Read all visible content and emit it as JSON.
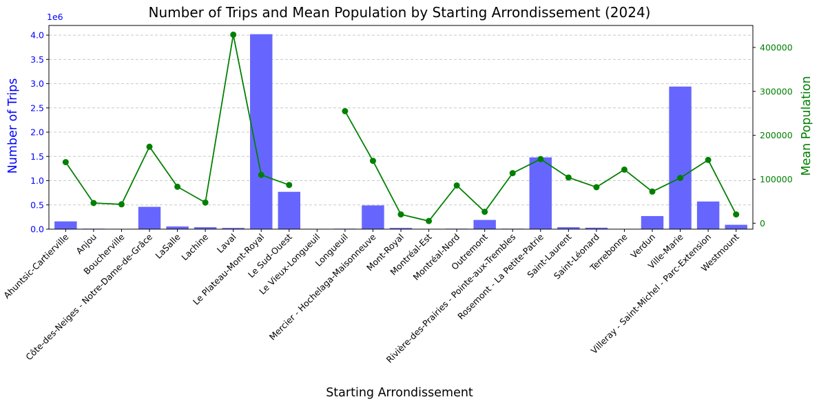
{
  "chart_data": {
    "type": "bar",
    "title": "Number of Trips and Mean Population by Starting Arrondissement (2024)",
    "xlabel": "Starting Arrondissement",
    "ylabel": "Number of Trips",
    "y2label": "Mean Population",
    "y_offset_label": "1e6",
    "categories": [
      "Ahuntsic-Cartierville",
      "Anjou",
      "Boucherville",
      "Côte-des-Neiges - Notre-Dame-de-Grâce",
      "LaSalle",
      "Lachine",
      "Laval",
      "Le Plateau-Mont-Royal",
      "Le Sud-Ouest",
      "Le Vieux-Longueuil",
      "Longueuil",
      "Mercier - Hochelaga-Maisonneuve",
      "Mont-Royal",
      "Montréal-Est",
      "Montréal-Nord",
      "Outremont",
      "Rivière-des-Prairies - Pointe-aux-Trembles",
      "Rosemont - La Petite-Patrie",
      "Saint-Laurent",
      "Saint-Léonard",
      "Terrebonne",
      "Verdun",
      "Ville-Marie",
      "Villeray - Saint-Michel - Parc-Extension",
      "Westmount"
    ],
    "series": [
      {
        "name": "Number of Trips",
        "type": "bar",
        "axis": "left",
        "values": [
          0.16,
          0.01,
          0.0,
          0.46,
          0.055,
          0.04,
          0.025,
          4.02,
          0.77,
          0.0,
          0.01,
          0.49,
          0.025,
          0.0,
          0.01,
          0.19,
          0.01,
          1.48,
          0.04,
          0.03,
          0.0,
          0.27,
          2.94,
          0.57,
          0.09
        ]
      },
      {
        "name": "Mean Population",
        "type": "line",
        "axis": "right",
        "values": [
          139000,
          46000,
          43000,
          174000,
          83000,
          47000,
          429000,
          110000,
          87000,
          null,
          255000,
          142000,
          20000,
          5000,
          86000,
          26000,
          114000,
          146000,
          104000,
          82000,
          122000,
          72000,
          103000,
          144000,
          20000
        ]
      }
    ],
    "ylim": [
      0,
      4.2
    ],
    "y2lim": [
      -13500,
      450000
    ],
    "yticks": [
      "0.0",
      "0.5",
      "1.0",
      "1.5",
      "2.0",
      "2.5",
      "3.0",
      "3.5",
      "4.0"
    ],
    "y2ticks": [
      "0",
      "100000",
      "200000",
      "300000",
      "400000"
    ],
    "grid": "y-dashed",
    "colors": {
      "bar": "#6666ff",
      "line": "#008000",
      "left_axis": "#0000ff",
      "right_axis": "#008000",
      "grid": "#c8c8c8"
    }
  }
}
